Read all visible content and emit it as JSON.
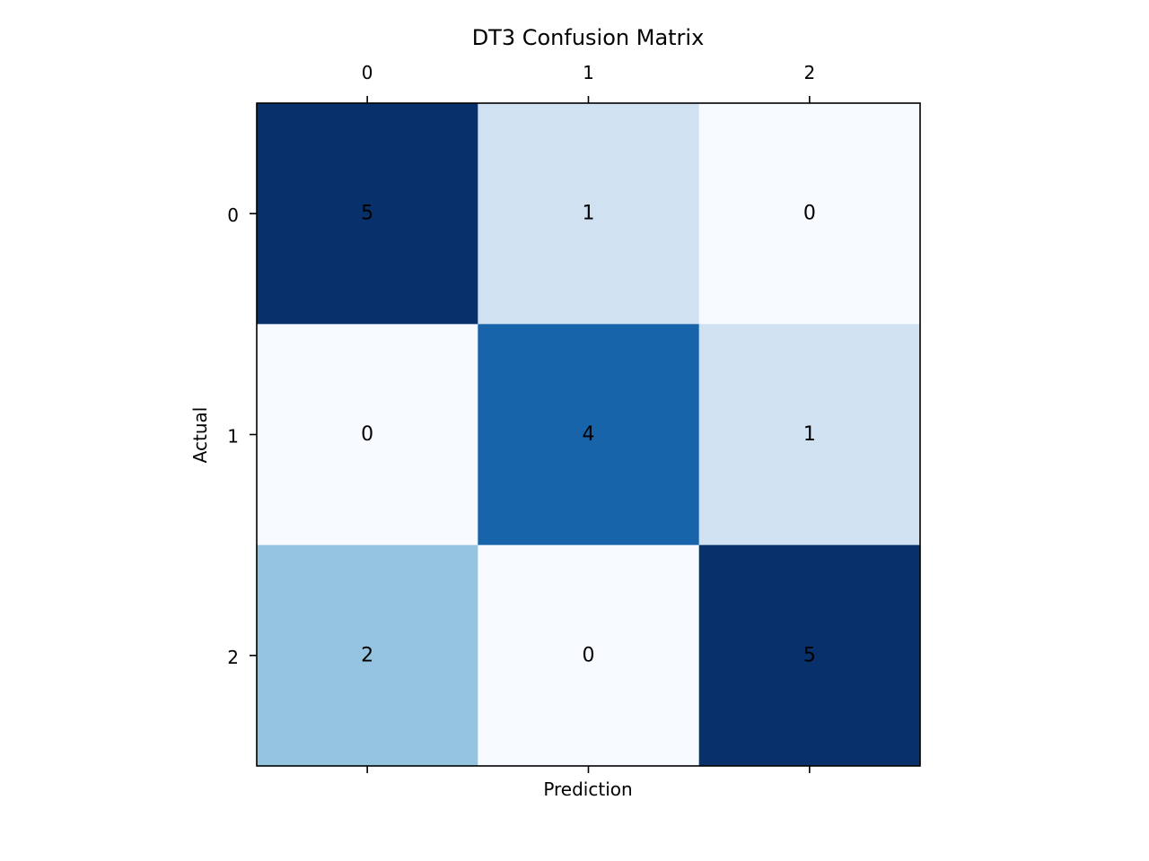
{
  "chart_data": {
    "type": "heatmap",
    "title": "DT3 Confusion Matrix",
    "xlabel": "Prediction",
    "ylabel": "Actual",
    "x_ticks": [
      "0",
      "1",
      "2"
    ],
    "y_ticks": [
      "0",
      "1",
      "2"
    ],
    "matrix": [
      [
        5,
        1,
        0
      ],
      [
        0,
        4,
        1
      ],
      [
        2,
        0,
        5
      ]
    ],
    "colormap": "Blues",
    "value_range": [
      0,
      5
    ],
    "grid": false,
    "x_axis_position": "top"
  }
}
